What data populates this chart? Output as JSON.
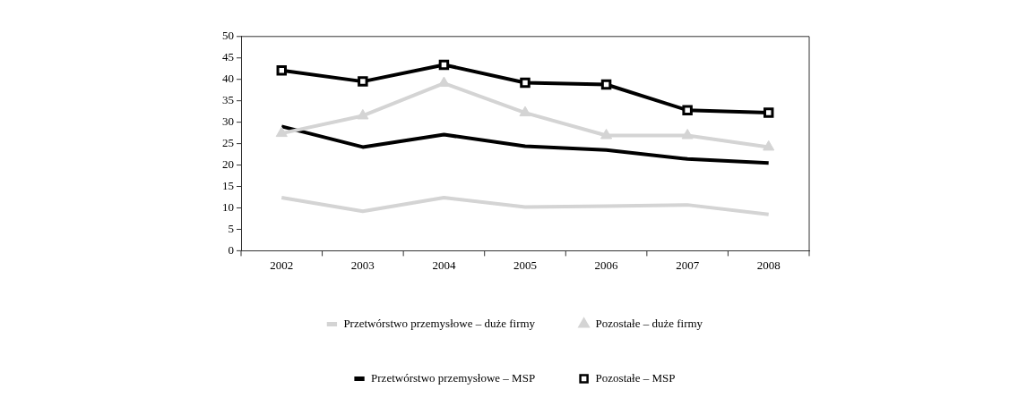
{
  "chart_data": {
    "type": "line",
    "categories": [
      "2002",
      "2003",
      "2004",
      "2005",
      "2006",
      "2007",
      "2008"
    ],
    "series": [
      {
        "name": "Przetwórstwo przemysłowe – duże firmy",
        "color": "#d4d4d4",
        "marker": "none",
        "values": [
          12.4,
          9.2,
          12.4,
          10.2,
          10.4,
          10.7,
          8.5
        ]
      },
      {
        "name": "Pozostałe – duże firmy",
        "color": "#d4d4d4",
        "marker": "triangle",
        "values": [
          27.4,
          31.5,
          39.1,
          32.2,
          26.9,
          26.9,
          24.2
        ]
      },
      {
        "name": "Przetwórstwo przemysłowe – MSP",
        "color": "#000000",
        "marker": "none",
        "values": [
          29.0,
          24.2,
          27.1,
          24.4,
          23.5,
          21.4,
          20.5
        ]
      },
      {
        "name": "Pozostałe – MSP",
        "color": "#000000",
        "marker": "square",
        "values": [
          42.1,
          39.5,
          43.4,
          39.2,
          38.8,
          32.8,
          32.2
        ]
      }
    ],
    "ylim": [
      0,
      50
    ],
    "yticks": [
      0,
      5,
      10,
      15,
      20,
      25,
      30,
      35,
      40,
      45,
      50
    ],
    "grid": false,
    "legend": "bottom"
  }
}
